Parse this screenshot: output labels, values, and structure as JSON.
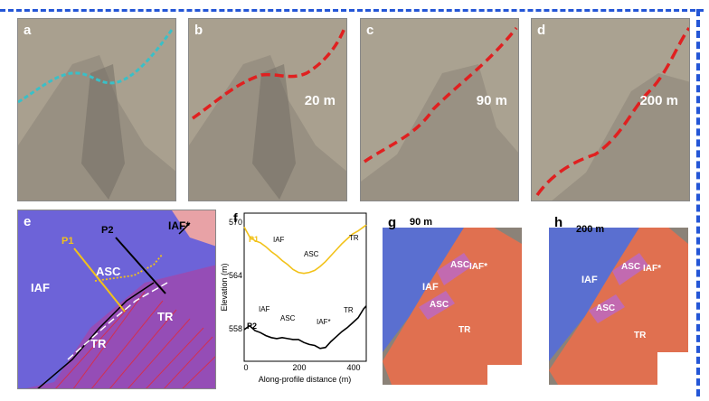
{
  "colors": {
    "frame": "#2456d6",
    "trace_cyan": "#39c0c8",
    "trace_red": "#e02020",
    "p1": "#f2c21a",
    "p2": "#000000",
    "iaf_blue": "#5a6fd0",
    "tr_orange": "#e07050",
    "asc_pink": "#c26ab0"
  },
  "top_panels": [
    {
      "label": "a",
      "scale": ""
    },
    {
      "label": "b",
      "scale": "20 m"
    },
    {
      "label": "c",
      "scale": "90 m"
    },
    {
      "label": "d",
      "scale": "200 m"
    }
  ],
  "panel_e": {
    "label": "e",
    "p1": "P1",
    "p2": "P2",
    "iaf": "IAF",
    "asc": "ASC",
    "iaf_star": "IAF*",
    "tr_left": "TR",
    "tr_right": "TR"
  },
  "panel_f": {
    "label": "f",
    "ylabel": "Elevation (m)",
    "xlabel": "Along-profile distance (m)",
    "yticks": [
      "570",
      "564",
      "558"
    ],
    "xticks": [
      "0",
      "200",
      "400"
    ],
    "p1_label": "P1",
    "p2_label": "P2",
    "p1_units": {
      "iaf": "IAF",
      "asc": "ASC",
      "tr": "TR"
    },
    "p2_units": {
      "iaf": "IAF",
      "asc": "ASC",
      "iaf_star": "IAF*",
      "tr": "TR"
    }
  },
  "panel_g": {
    "label": "g",
    "scale": "90 m",
    "iaf": "IAF",
    "asc1": "ASC",
    "asc2": "ASC",
    "iaf_star": "IAF*",
    "tr": "TR"
  },
  "panel_h": {
    "label": "h",
    "scale": "200 m",
    "iaf": "IAF",
    "asc1": "ASC",
    "asc2": "ASC",
    "iaf_star": "IAF*",
    "tr": "TR"
  },
  "chart_data": {
    "type": "line",
    "xlabel": "Along-profile distance (m)",
    "ylabel": "Elevation (m)",
    "xlim": [
      0,
      450
    ],
    "ylim": [
      556,
      571
    ],
    "series": [
      {
        "name": "P1",
        "x": [
          0,
          20,
          40,
          60,
          80,
          100,
          120,
          140,
          160,
          180,
          200,
          220,
          240,
          260,
          280,
          300,
          320,
          340,
          360,
          380,
          400,
          420,
          440,
          450
        ],
        "values": [
          569.6,
          568.6,
          568.2,
          568.0,
          567.6,
          567.1,
          566.7,
          566.2,
          565.8,
          565.3,
          565.0,
          564.9,
          565.0,
          565.2,
          565.6,
          566.1,
          566.7,
          567.3,
          567.9,
          568.4,
          568.9,
          569.2,
          569.6,
          569.8
        ]
      },
      {
        "name": "P2",
        "x": [
          0,
          20,
          40,
          60,
          80,
          100,
          120,
          140,
          160,
          180,
          200,
          220,
          240,
          260,
          280,
          300,
          320,
          340,
          360,
          380,
          400,
          420,
          440,
          450
        ],
        "values": [
          559.2,
          559.6,
          559.1,
          558.9,
          558.6,
          558.4,
          558.3,
          558.4,
          558.3,
          558.2,
          558.2,
          557.9,
          557.7,
          557.6,
          557.3,
          557.4,
          558.0,
          558.5,
          559.0,
          559.4,
          559.9,
          560.4,
          561.3,
          561.6
        ]
      }
    ]
  }
}
